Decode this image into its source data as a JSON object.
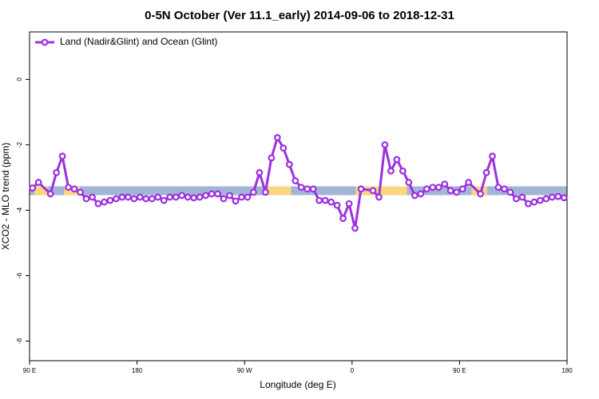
{
  "chart_data": {
    "type": "line",
    "title": "0-5N October (Ver 11.1_early)   2014-09-06 to 2018-12-31",
    "x_label": "Longitude (deg E)",
    "y_label": "XCO2 - MLO trend (ppm)",
    "xlim": [
      90,
      540
    ],
    "ylim": [
      -8.6,
      1.45
    ],
    "xticks": [
      {
        "value": 90,
        "label": "90 E"
      },
      {
        "value": 180,
        "label": "180"
      },
      {
        "value": 270,
        "label": "90 W"
      },
      {
        "value": 360,
        "label": "0"
      },
      {
        "value": 450,
        "label": "90 E"
      },
      {
        "value": 540,
        "label": "180"
      }
    ],
    "yticks": [
      0,
      -2,
      -4,
      -6,
      -8
    ],
    "legend": "top-left",
    "band": {
      "ylim": [
        -3.54,
        -3.27
      ],
      "color": "#a3b5d6",
      "highlight_color": "#f9d77e",
      "highlights": [
        [
          94,
          105
        ],
        [
          119,
          132
        ],
        [
          286,
          309
        ],
        [
          363,
          406
        ],
        [
          460,
          473
        ]
      ]
    },
    "series": [
      {
        "name": "Land (Nadir&Glint) and Ocean (Glint)",
        "color": "#9b30e0",
        "x": [
          92.5,
          97.5,
          107.5,
          112.5,
          117.5,
          122.5,
          127.5,
          132.5,
          137.5,
          142.5,
          147.5,
          152.5,
          157.5,
          162.5,
          167.5,
          172.5,
          177.5,
          182.5,
          187.5,
          192.5,
          197.5,
          202.5,
          207.5,
          212.5,
          217.5,
          222.5,
          227.5,
          232.5,
          237.5,
          242.5,
          247.5,
          252.5,
          257.5,
          262.5,
          267.5,
          272.5,
          277.5,
          282.5,
          287.5,
          292.5,
          297.5,
          302.5,
          307.5,
          312.5,
          317.5,
          322.5,
          327.5,
          332.5,
          337.5,
          342.5,
          347.5,
          352.5,
          357.5,
          362.5,
          367.5,
          377.5,
          382.5,
          387.5,
          392.5,
          397.5,
          402.5,
          407.5,
          412.5,
          417.5,
          422.5,
          427.5,
          432.5,
          437.5,
          442.5,
          447.5,
          452.5,
          457.5,
          467.5,
          472.5,
          477.5,
          482.5,
          487.5,
          492.5,
          497.5,
          502.5,
          507.5,
          512.5,
          517.5,
          522.5,
          527.5,
          532.5,
          537.5
        ],
        "values": [
          -3.32,
          -3.15,
          -3.5,
          -2.85,
          -2.35,
          -3.3,
          -3.35,
          -3.45,
          -3.65,
          -3.6,
          -3.8,
          -3.75,
          -3.7,
          -3.65,
          -3.6,
          -3.6,
          -3.65,
          -3.6,
          -3.65,
          -3.65,
          -3.6,
          -3.7,
          -3.6,
          -3.6,
          -3.55,
          -3.6,
          -3.62,
          -3.6,
          -3.55,
          -3.5,
          -3.5,
          -3.65,
          -3.55,
          -3.72,
          -3.6,
          -3.6,
          -3.45,
          -2.85,
          -3.45,
          -2.4,
          -1.78,
          -2.1,
          -2.6,
          -3.1,
          -3.3,
          -3.35,
          -3.35,
          -3.7,
          -3.7,
          -3.75,
          -3.85,
          -4.25,
          -3.8,
          -4.55,
          -3.35,
          -3.4,
          -3.6,
          -2.0,
          -2.8,
          -2.45,
          -2.8,
          -3.15,
          -3.55,
          -3.5,
          -3.35,
          -3.3,
          -3.3,
          -3.2,
          -3.4,
          -3.45,
          -3.35,
          -3.15,
          -3.5,
          -2.85,
          -2.35,
          -3.3,
          -3.35,
          -3.45,
          -3.65,
          -3.6,
          -3.8,
          -3.75,
          -3.7,
          -3.65,
          -3.6,
          -3.58,
          -3.62
        ]
      }
    ]
  }
}
